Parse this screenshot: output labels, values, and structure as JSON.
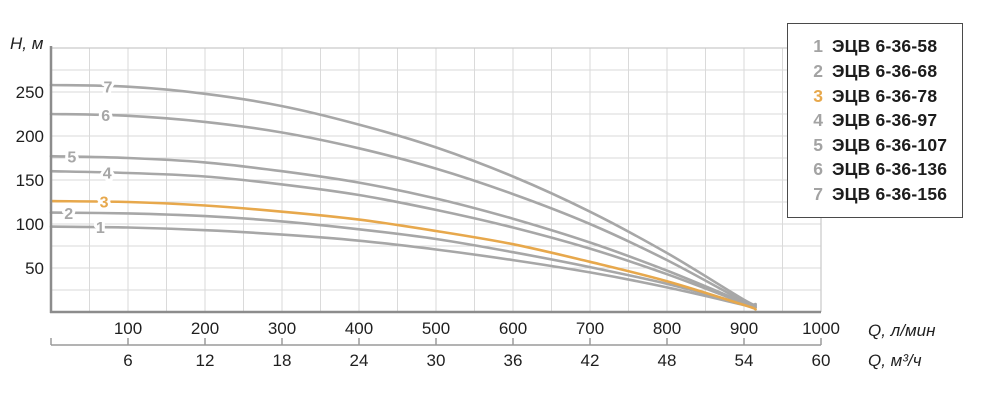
{
  "colors": {
    "curve_gray": "#a7a7a7",
    "curve_highlight": "#e7a84c",
    "grid": "#dadada",
    "axis_dark": "#8c8c8c",
    "axis_secondary": "#9a9a9a",
    "border_light": "#c9c9c9",
    "text": "#1f1f1f",
    "legend_border": "#4a4a4a"
  },
  "axes": {
    "y_title": "H, м",
    "x_title_primary": "Q, л/мин",
    "x_title_secondary": "Q, м³/ч",
    "y_ticks": [
      50,
      100,
      150,
      200,
      250
    ],
    "x_ticks_lmin": [
      100,
      200,
      300,
      400,
      500,
      600,
      700,
      800,
      900,
      1000
    ],
    "x_ticks_m3h": [
      6,
      12,
      18,
      24,
      30,
      36,
      42,
      48,
      54,
      60
    ]
  },
  "legend": {
    "items": [
      {
        "num": "1",
        "label": "ЭЦВ 6-36-58",
        "highlight": false
      },
      {
        "num": "2",
        "label": "ЭЦВ 6-36-68",
        "highlight": false
      },
      {
        "num": "3",
        "label": "ЭЦВ 6-36-78",
        "highlight": true
      },
      {
        "num": "4",
        "label": "ЭЦВ 6-36-97",
        "highlight": false
      },
      {
        "num": "5",
        "label": "ЭЦВ 6-36-107",
        "highlight": false
      },
      {
        "num": "6",
        "label": "ЭЦВ 6-36-136",
        "highlight": false
      },
      {
        "num": "7",
        "label": "ЭЦВ 6-36-156",
        "highlight": false
      }
    ]
  },
  "chart_data": {
    "type": "line",
    "title": "",
    "xlabel": "Q, л/мин",
    "xlabel_secondary": "Q, м³/ч",
    "ylabel": "H, м",
    "xlim": [
      0,
      1000
    ],
    "ylim": [
      0,
      300
    ],
    "grid": true,
    "grid_step_x": 50,
    "grid_step_y": 25,
    "legend_position": "top-right",
    "x": [
      0,
      100,
      200,
      300,
      400,
      500,
      600,
      700,
      800,
      900,
      915
    ],
    "series": [
      {
        "curve_number": "1",
        "name": "ЭЦВ 6-36-58",
        "highlight": false,
        "label_q": 64,
        "values": [
          97,
          96,
          93,
          88,
          81,
          71,
          59,
          45,
          28,
          8,
          5
        ]
      },
      {
        "curve_number": "2",
        "name": "ЭЦВ 6-36-68",
        "highlight": false,
        "label_q": 23,
        "values": [
          113,
          112,
          109,
          103,
          94,
          83,
          68,
          51,
          32,
          9,
          5
        ]
      },
      {
        "curve_number": "3",
        "name": "ЭЦВ 6-36-78",
        "highlight": true,
        "label_q": 69,
        "values": [
          126,
          125,
          121,
          114,
          105,
          92,
          77,
          57,
          35,
          8,
          3
        ]
      },
      {
        "curve_number": "4",
        "name": "ЭЦВ 6-36-97",
        "highlight": false,
        "label_q": 73,
        "values": [
          160,
          158,
          154,
          145,
          133,
          116,
          96,
          72,
          43,
          10,
          6
        ]
      },
      {
        "curve_number": "5",
        "name": "ЭЦВ 6-36-107",
        "highlight": false,
        "label_q": 27,
        "values": [
          177,
          175,
          170,
          160,
          147,
          129,
          106,
          79,
          47,
          11,
          7
        ]
      },
      {
        "curve_number": "6",
        "name": "ЭЦВ 6-36-136",
        "highlight": false,
        "label_q": 71,
        "values": [
          225,
          223,
          216,
          204,
          186,
          163,
          134,
          100,
          59,
          12,
          8
        ]
      },
      {
        "curve_number": "7",
        "name": "ЭЦВ 6-36-156",
        "highlight": false,
        "label_q": 74,
        "values": [
          258,
          256,
          248,
          234,
          213,
          187,
          154,
          114,
          67,
          14,
          9
        ]
      }
    ]
  },
  "layout_note": ""
}
